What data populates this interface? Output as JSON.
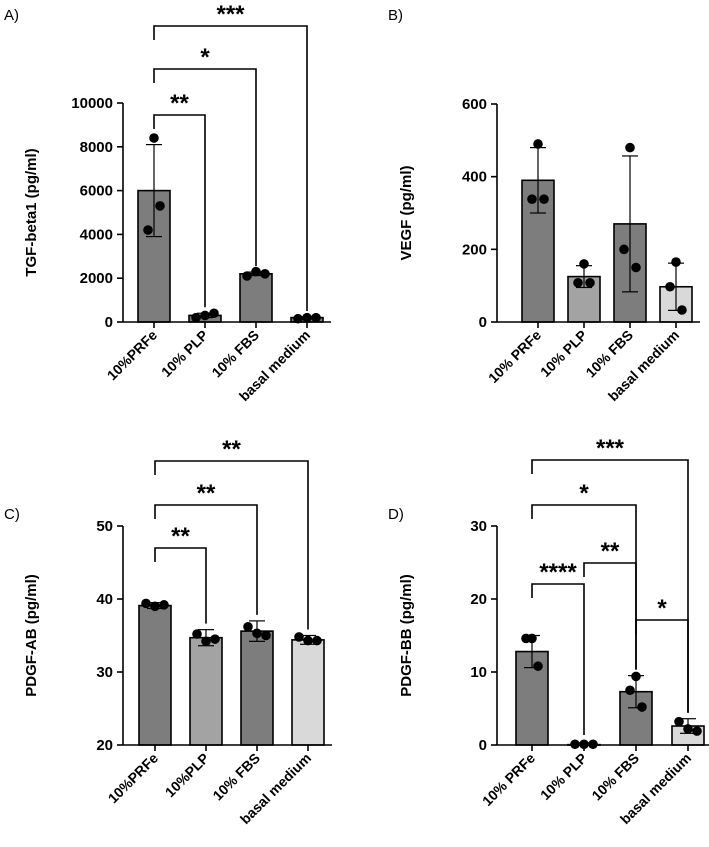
{
  "colors": {
    "dark_bar": "#7d7d7d",
    "mid_bar": "#a3a3a3",
    "light_bar": "#d9d9d9",
    "axis": "#000000",
    "point": "#000000"
  },
  "chart_data": [
    {
      "panel": "A)",
      "type": "bar",
      "ylabel": "TGF-beta1 (pg/ml)",
      "ylim": [
        0,
        10000
      ],
      "yticks": [
        0,
        2000,
        4000,
        6000,
        8000,
        10000
      ],
      "categories": [
        "10%PRFe",
        "10% PLP",
        "10% FBS",
        "basal medium"
      ],
      "bar_colors": [
        "dark_bar",
        "dark_bar",
        "dark_bar",
        "dark_bar"
      ],
      "values": [
        6000,
        300,
        2200,
        200
      ],
      "errors": [
        2100,
        100,
        80,
        30
      ],
      "points": [
        [
          8400,
          4200,
          5300
        ],
        [
          200,
          300,
          400
        ],
        [
          2100,
          2300,
          2200
        ],
        [
          150,
          200,
          200
        ]
      ],
      "significance": [
        {
          "from": 0,
          "to": 1,
          "label": "**"
        },
        {
          "from": 0,
          "to": 2,
          "label": "*"
        },
        {
          "from": 0,
          "to": 3,
          "label": "***"
        }
      ]
    },
    {
      "panel": "B)",
      "type": "bar",
      "ylabel": "VEGF (pg/ml)",
      "ylim": [
        0,
        600
      ],
      "yticks": [
        0,
        200,
        400,
        600
      ],
      "categories": [
        "10% PRFe",
        "10% PLP",
        "10% FBS",
        "basal medium"
      ],
      "bar_colors": [
        "dark_bar",
        "mid_bar",
        "dark_bar",
        "light_bar"
      ],
      "values": [
        390,
        125,
        270,
        97
      ],
      "errors": [
        90,
        30,
        187,
        65
      ],
      "points": [
        [
          490,
          338,
          338
        ],
        [
          160,
          108,
          108
        ],
        [
          480,
          200,
          150
        ],
        [
          165,
          97,
          33
        ]
      ],
      "significance": []
    },
    {
      "panel": "C)",
      "type": "bar",
      "ylabel": "PDGF-AB (pg/ml)",
      "ylim": [
        20,
        50
      ],
      "yticks": [
        20,
        30,
        40,
        50
      ],
      "categories": [
        "10%PRFe",
        "10%PLP",
        "10% FBS",
        "basal medium"
      ],
      "bar_colors": [
        "dark_bar",
        "mid_bar",
        "dark_bar",
        "light_bar"
      ],
      "values": [
        39.1,
        34.7,
        35.6,
        34.4
      ],
      "errors": [
        0.4,
        1.1,
        1.4,
        0.6
      ],
      "points": [
        [
          39.4,
          39.0,
          39.2
        ],
        [
          35.2,
          34.2,
          34.5
        ],
        [
          36.2,
          35.3,
          35.0
        ],
        [
          34.8,
          34.3,
          34.3
        ]
      ],
      "significance": [
        {
          "from": 0,
          "to": 1,
          "label": "**"
        },
        {
          "from": 0,
          "to": 2,
          "label": "**"
        },
        {
          "from": 0,
          "to": 3,
          "label": "**"
        }
      ]
    },
    {
      "panel": "D)",
      "type": "bar",
      "ylabel": "PDGF-BB (pg/ml)",
      "ylim": [
        0,
        30
      ],
      "yticks": [
        0,
        10,
        20,
        30
      ],
      "categories": [
        "10% PRFe",
        "10% PLP",
        "10% FBS",
        "basal medium"
      ],
      "bar_colors": [
        "dark_bar",
        "mid_bar",
        "dark_bar",
        "light_bar"
      ],
      "values": [
        12.8,
        0.05,
        7.3,
        2.6
      ],
      "errors": [
        2.2,
        0.05,
        2.2,
        1.0
      ],
      "points": [
        [
          14.6,
          14.6,
          10.8
        ],
        [
          0.1,
          0.1,
          0.1
        ],
        [
          9.4,
          7.5,
          5.2
        ],
        [
          3.2,
          2.2,
          1.9
        ]
      ],
      "significance": [
        {
          "from": 0,
          "to": 1,
          "label": "****"
        },
        {
          "from": 1,
          "to": 2,
          "label": "**"
        },
        {
          "from": 2,
          "to": 3,
          "label": "*"
        },
        {
          "from": 0,
          "to": 2,
          "label": "*"
        },
        {
          "from": 0,
          "to": 3,
          "label": "***"
        }
      ]
    }
  ]
}
